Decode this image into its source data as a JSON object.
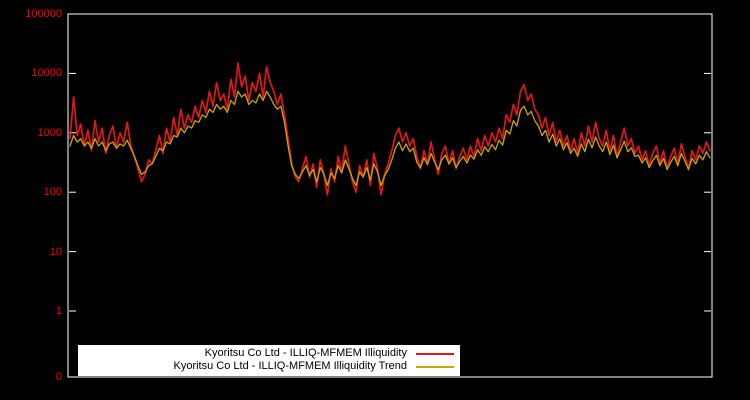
{
  "figure": {
    "background": "#000000",
    "border_color": "#ffffff"
  },
  "axes": {
    "y_scale": "log",
    "y_tick_color": "#ff0000",
    "y_ticks": [
      "100000",
      "10000",
      "1000",
      "100",
      "10",
      "1",
      "0"
    ],
    "x_ticks": []
  },
  "legend": {
    "background": "#ffffff",
    "text_color": "#000000",
    "items": [
      {
        "label": "Kyoritsu Co Ltd - ILLIQ-MFMEM Illiquidity",
        "color": "#e01818"
      },
      {
        "label": "Kyoritsu Co Ltd - ILLIQ-MFMEM Illiquidity Trend",
        "color": "#c9a800"
      }
    ]
  },
  "chart_data": {
    "type": "line",
    "title": "",
    "xlabel": "",
    "ylabel": "",
    "y_scale": "log",
    "ylim": [
      1,
      100000
    ],
    "grid": false,
    "legend_position": "bottom-left",
    "series": [
      {
        "name": "Kyoritsu Co Ltd - ILLIQ-MFMEM Illiquidity",
        "color": "#e01818",
        "width": 1.7,
        "values": [
          800,
          4000,
          900,
          1400,
          600,
          1100,
          500,
          1600,
          700,
          1200,
          450,
          900,
          1300,
          550,
          1000,
          700,
          1500,
          600,
          400,
          250,
          150,
          200,
          350,
          300,
          500,
          900,
          450,
          1200,
          700,
          1800,
          900,
          2500,
          1200,
          2000,
          1500,
          2800,
          1800,
          3500,
          2200,
          5000,
          2800,
          7000,
          3500,
          4500,
          2500,
          8000,
          4000,
          15000,
          6000,
          9000,
          3500,
          7000,
          5000,
          10000,
          4000,
          13000,
          7000,
          5000,
          3000,
          4500,
          2000,
          800,
          300,
          180,
          150,
          250,
          400,
          180,
          300,
          120,
          350,
          200,
          90,
          250,
          150,
          400,
          220,
          600,
          300,
          150,
          100,
          280,
          180,
          350,
          130,
          450,
          250,
          90,
          200,
          300,
          500,
          900,
          1200,
          700,
          1000,
          600,
          800,
          400,
          250,
          500,
          300,
          700,
          350,
          200,
          450,
          600,
          300,
          500,
          250,
          400,
          550,
          350,
          600,
          400,
          800,
          500,
          900,
          600,
          1000,
          700,
          1200,
          800,
          2000,
          1500,
          3000,
          2000,
          5000,
          6500,
          3500,
          4500,
          2500,
          2000,
          1200,
          1800,
          900,
          1500,
          700,
          1100,
          600,
          900,
          500,
          800,
          450,
          1000,
          600,
          1300,
          700,
          1500,
          800,
          600,
          1100,
          500,
          900,
          400,
          700,
          1200,
          600,
          800,
          450,
          600,
          350,
          500,
          280,
          450,
          600,
          300,
          500,
          250,
          400,
          550,
          300,
          650,
          400,
          250,
          500,
          350,
          600,
          450,
          700,
          500
        ]
      },
      {
        "name": "Kyoritsu Co Ltd - ILLIQ-MFMEM Illiquidity Trend",
        "color": "#c9a800",
        "width": 1.3,
        "values": [
          600,
          900,
          700,
          800,
          600,
          700,
          550,
          800,
          600,
          700,
          500,
          650,
          700,
          550,
          650,
          600,
          750,
          550,
          400,
          280,
          200,
          220,
          280,
          300,
          400,
          550,
          500,
          700,
          650,
          900,
          850,
          1200,
          1000,
          1300,
          1200,
          1600,
          1500,
          2000,
          1800,
          2500,
          2200,
          3000,
          2500,
          2800,
          2200,
          3500,
          3000,
          5000,
          4000,
          4500,
          3000,
          3500,
          3200,
          4500,
          3500,
          5000,
          4000,
          3000,
          2500,
          2800,
          1500,
          600,
          280,
          200,
          170,
          220,
          280,
          190,
          240,
          150,
          260,
          200,
          130,
          210,
          170,
          280,
          210,
          350,
          250,
          170,
          130,
          220,
          180,
          260,
          160,
          300,
          220,
          130,
          190,
          240,
          350,
          550,
          700,
          500,
          650,
          480,
          550,
          320,
          260,
          380,
          290,
          450,
          320,
          240,
          350,
          420,
          300,
          380,
          260,
          330,
          400,
          310,
          420,
          360,
          520,
          420,
          580,
          480,
          640,
          520,
          750,
          620,
          1100,
          950,
          1600,
          1300,
          2400,
          2800,
          2000,
          2300,
          1600,
          1300,
          900,
          1100,
          700,
          950,
          600,
          800,
          520,
          680,
          450,
          550,
          400,
          650,
          480,
          780,
          560,
          850,
          600,
          480,
          700,
          430,
          620,
          380,
          520,
          720,
          480,
          560,
          400,
          420,
          310,
          380,
          260,
          340,
          420,
          280,
          370,
          240,
          320,
          400,
          280,
          450,
          330,
          240,
          370,
          300,
          420,
          350,
          480,
          380
        ]
      }
    ]
  }
}
